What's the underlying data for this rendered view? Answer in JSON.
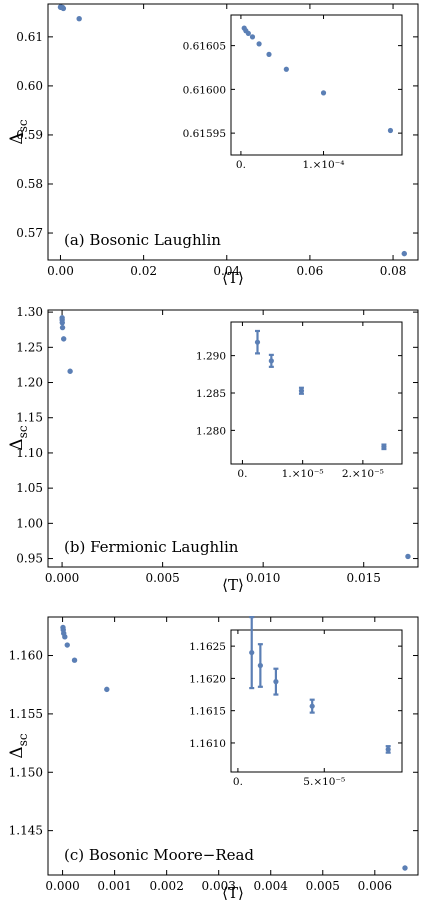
{
  "colors": {
    "marker": "#5b7fb5",
    "frame": "#000000",
    "background": "#ffffff"
  },
  "chart_data": [
    {
      "type": "scatter",
      "panel_label": "(a) Bosonic Laughlin",
      "xlabel": "⟨T⟩",
      "ylabel": "Δ",
      "ylabel_sub": "sc",
      "xlim": [
        -0.003,
        0.086
      ],
      "ylim": [
        0.5645,
        0.6167
      ],
      "x_ticks": [
        {
          "v": 0,
          "label": "0.00"
        },
        {
          "v": 0.02,
          "label": "0.02"
        },
        {
          "v": 0.04,
          "label": "0.04"
        },
        {
          "v": 0.06,
          "label": "0.06"
        },
        {
          "v": 0.08,
          "label": "0.08"
        }
      ],
      "y_ticks": [
        {
          "v": 0.57,
          "label": "0.57"
        },
        {
          "v": 0.58,
          "label": "0.58"
        },
        {
          "v": 0.59,
          "label": "0.59"
        },
        {
          "v": 0.6,
          "label": "0.60"
        },
        {
          "v": 0.61,
          "label": "0.61"
        }
      ],
      "points": [
        {
          "x": 1e-05,
          "y": 0.61607
        },
        {
          "x": 3e-05,
          "y": 0.61606
        },
        {
          "x": 5e-05,
          "y": 0.61605
        },
        {
          "x": 0.0001,
          "y": 0.61604
        },
        {
          "x": 0.0002,
          "y": 0.61602
        },
        {
          "x": 0.0005,
          "y": 0.616
        },
        {
          "x": 0.0007,
          "y": 0.6158
        },
        {
          "x": 0.0045,
          "y": 0.6137
        },
        {
          "x": 0.0827,
          "y": 0.5658
        }
      ],
      "inset": {
        "xlim": [
          -1.2e-05,
          0.000195
        ],
        "ylim": [
          0.615925,
          0.616085
        ],
        "x_ticks": [
          {
            "v": 0,
            "label": "0."
          },
          {
            "v": 0.0001,
            "label": "1.×10⁻⁴"
          }
        ],
        "y_ticks": [
          {
            "v": 0.61595,
            "label": "0.61595"
          },
          {
            "v": 0.616,
            "label": "0.61600"
          },
          {
            "v": 0.61605,
            "label": "0.61605"
          }
        ],
        "points": [
          {
            "x": 4e-06,
            "y": 0.61607,
            "err": 0
          },
          {
            "x": 6e-06,
            "y": 0.616067,
            "err": 0
          },
          {
            "x": 9e-06,
            "y": 0.616064,
            "err": 0
          },
          {
            "x": 1.4e-05,
            "y": 0.61606,
            "err": 0
          },
          {
            "x": 2.2e-05,
            "y": 0.616052,
            "err": 0
          },
          {
            "x": 3.4e-05,
            "y": 0.61604,
            "err": 0
          },
          {
            "x": 5.5e-05,
            "y": 0.616023,
            "err": 0
          },
          {
            "x": 0.0001,
            "y": 0.615996,
            "err": 0
          },
          {
            "x": 0.000181,
            "y": 0.615953,
            "err": 0
          }
        ]
      }
    },
    {
      "type": "scatter",
      "panel_label": "(b) Fermionic Laughlin",
      "xlabel": "⟨T⟩",
      "ylabel": "Δ",
      "ylabel_sub": "sc",
      "xlim": [
        -0.0007,
        0.0177
      ],
      "ylim": [
        0.938,
        1.303
      ],
      "x_ticks": [
        {
          "v": 0,
          "label": "0.000"
        },
        {
          "v": 0.005,
          "label": "0.005"
        },
        {
          "v": 0.01,
          "label": "0.010"
        },
        {
          "v": 0.015,
          "label": "0.015"
        }
      ],
      "y_ticks": [
        {
          "v": 0.95,
          "label": "0.95"
        },
        {
          "v": 1.0,
          "label": "1.00"
        },
        {
          "v": 1.05,
          "label": "1.05"
        },
        {
          "v": 1.1,
          "label": "1.10"
        },
        {
          "v": 1.15,
          "label": "1.15"
        },
        {
          "v": 1.2,
          "label": "1.20"
        },
        {
          "v": 1.25,
          "label": "1.25"
        },
        {
          "v": 1.3,
          "label": "1.30"
        }
      ],
      "points": [
        {
          "x": 3e-06,
          "y": 1.292
        },
        {
          "x": 5e-06,
          "y": 1.289
        },
        {
          "x": 1e-05,
          "y": 1.285
        },
        {
          "x": 2.3e-05,
          "y": 1.278
        },
        {
          "x": 8e-05,
          "y": 1.262
        },
        {
          "x": 0.0004,
          "y": 1.216
        },
        {
          "x": 0.0172,
          "y": 0.953
        }
      ],
      "inset": {
        "xlim": [
          -1.9e-06,
          2.65e-05
        ],
        "ylim": [
          1.2755,
          1.2945
        ],
        "x_ticks": [
          {
            "v": 0,
            "label": "0."
          },
          {
            "v": 1e-05,
            "label": "1.×10⁻⁵"
          },
          {
            "v": 2e-05,
            "label": "2.×10⁻⁵"
          }
        ],
        "y_ticks": [
          {
            "v": 1.28,
            "label": "1.280"
          },
          {
            "v": 1.285,
            "label": "1.285"
          },
          {
            "v": 1.29,
            "label": "1.290"
          }
        ],
        "points": [
          {
            "x": 2.5e-06,
            "y": 1.2918,
            "err": 0.0015
          },
          {
            "x": 4.8e-06,
            "y": 1.2893,
            "err": 0.0008
          },
          {
            "x": 9.8e-06,
            "y": 1.2853,
            "err": 0.0004
          },
          {
            "x": 2.35e-05,
            "y": 1.2778,
            "err": 0.0003
          }
        ]
      }
    },
    {
      "type": "scatter",
      "panel_label": "(c) Bosonic Moore−Read",
      "xlabel": "⟨T⟩",
      "ylabel": "Δ",
      "ylabel_sub": "sc",
      "xlim": [
        -0.00028,
        0.00683
      ],
      "ylim": [
        1.1412,
        1.1633
      ],
      "x_ticks": [
        {
          "v": 0,
          "label": "0.000"
        },
        {
          "v": 0.001,
          "label": "0.001"
        },
        {
          "v": 0.002,
          "label": "0.002"
        },
        {
          "v": 0.003,
          "label": "0.003"
        },
        {
          "v": 0.004,
          "label": "0.004"
        },
        {
          "v": 0.005,
          "label": "0.005"
        },
        {
          "v": 0.006,
          "label": "0.006"
        }
      ],
      "y_ticks": [
        {
          "v": 1.145,
          "label": "1.145"
        },
        {
          "v": 1.15,
          "label": "1.150"
        },
        {
          "v": 1.155,
          "label": "1.155"
        },
        {
          "v": 1.16,
          "label": "1.160"
        }
      ],
      "points": [
        {
          "x": 8e-06,
          "y": 1.1624
        },
        {
          "x": 1.3e-05,
          "y": 1.1622
        },
        {
          "x": 2.2e-05,
          "y": 1.1619
        },
        {
          "x": 4.3e-05,
          "y": 1.1616
        },
        {
          "x": 9e-05,
          "y": 1.1609
        },
        {
          "x": 0.00023,
          "y": 1.1596
        },
        {
          "x": 0.00085,
          "y": 1.1571
        },
        {
          "x": 0.00658,
          "y": 1.1418
        }
      ],
      "inset": {
        "xlim": [
          -4e-06,
          9.5e-05
        ],
        "ylim": [
          1.16055,
          1.16275
        ],
        "x_ticks": [
          {
            "v": 0,
            "label": "0."
          },
          {
            "v": 5e-05,
            "label": "5.×10⁻⁵"
          }
        ],
        "y_ticks": [
          {
            "v": 1.161,
            "label": "1.1610"
          },
          {
            "v": 1.1615,
            "label": "1.1615"
          },
          {
            "v": 1.162,
            "label": "1.1620"
          },
          {
            "v": 1.1625,
            "label": "1.1625"
          }
        ],
        "points": [
          {
            "x": 8e-06,
            "y": 1.1624,
            "err": 0.00055
          },
          {
            "x": 1.3e-05,
            "y": 1.1622,
            "err": 0.00033
          },
          {
            "x": 2.2e-05,
            "y": 1.16195,
            "err": 0.0002
          },
          {
            "x": 4.3e-05,
            "y": 1.16157,
            "err": 0.0001
          },
          {
            "x": 8.7e-05,
            "y": 1.1609,
            "err": 5e-05
          }
        ]
      }
    }
  ]
}
